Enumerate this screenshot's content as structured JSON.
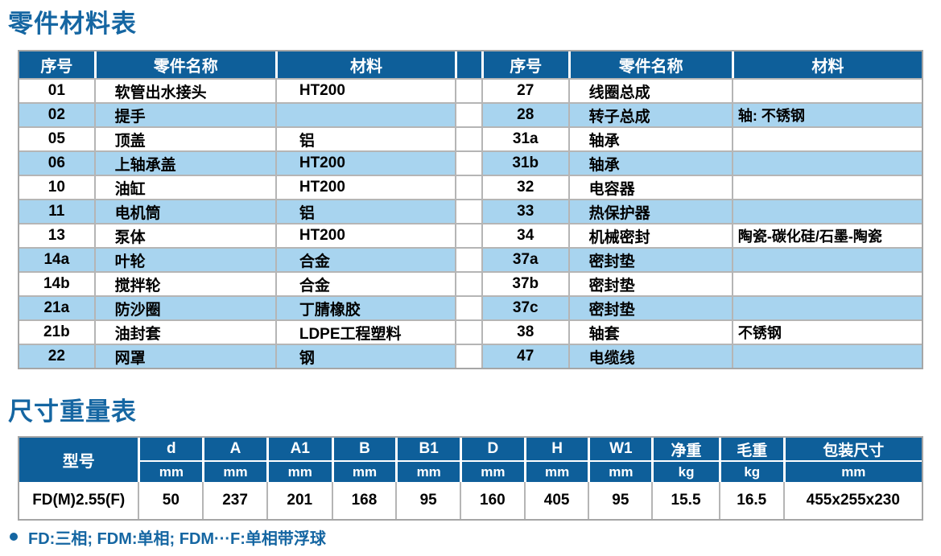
{
  "colors": {
    "header_bg": "#0e5f9a",
    "row_alt": "#a8d4ef",
    "title": "#1566a2",
    "grid_line": "#b5b5b5",
    "outer_border": "#a6a6a6"
  },
  "parts_table": {
    "title": "零件材料表",
    "headers": {
      "no": "序号",
      "name": "零件名称",
      "material": "材料"
    },
    "left_rows": [
      {
        "no": "01",
        "name": "软管出水接头",
        "material": "HT200"
      },
      {
        "no": "02",
        "name": "提手",
        "material": ""
      },
      {
        "no": "05",
        "name": "顶盖",
        "material": "铝"
      },
      {
        "no": "06",
        "name": "上轴承盖",
        "material": "HT200"
      },
      {
        "no": "10",
        "name": "油缸",
        "material": "HT200"
      },
      {
        "no": "11",
        "name": "电机筒",
        "material": "铝"
      },
      {
        "no": "13",
        "name": "泵体",
        "material": "HT200"
      },
      {
        "no": "14a",
        "name": "叶轮",
        "material": "合金"
      },
      {
        "no": "14b",
        "name": "搅拌轮",
        "material": "合金"
      },
      {
        "no": "21a",
        "name": "防沙圈",
        "material": "丁腈橡胶"
      },
      {
        "no": "21b",
        "name": "油封套",
        "material": "LDPE工程塑料"
      },
      {
        "no": "22",
        "name": "网罩",
        "material": "钢"
      }
    ],
    "right_rows": [
      {
        "no": "27",
        "name": "线圈总成",
        "material": ""
      },
      {
        "no": "28",
        "name": "转子总成",
        "material": "轴: 不锈钢"
      },
      {
        "no": "31a",
        "name": "轴承",
        "material": ""
      },
      {
        "no": "31b",
        "name": "轴承",
        "material": ""
      },
      {
        "no": "32",
        "name": "电容器",
        "material": ""
      },
      {
        "no": "33",
        "name": "热保护器",
        "material": ""
      },
      {
        "no": "34",
        "name": "机械密封",
        "material": "陶瓷-碳化硅/石墨-陶瓷"
      },
      {
        "no": "37a",
        "name": "密封垫",
        "material": ""
      },
      {
        "no": "37b",
        "name": "密封垫",
        "material": ""
      },
      {
        "no": "37c",
        "name": "密封垫",
        "material": ""
      },
      {
        "no": "38",
        "name": "轴套",
        "material": "不锈钢"
      },
      {
        "no": "47",
        "name": "电缆线",
        "material": ""
      }
    ]
  },
  "dimension_table": {
    "title": "尺寸重量表",
    "model_header": "型号",
    "columns": [
      {
        "label": "d",
        "unit": "mm"
      },
      {
        "label": "A",
        "unit": "mm"
      },
      {
        "label": "A1",
        "unit": "mm"
      },
      {
        "label": "B",
        "unit": "mm"
      },
      {
        "label": "B1",
        "unit": "mm"
      },
      {
        "label": "D",
        "unit": "mm"
      },
      {
        "label": "H",
        "unit": "mm"
      },
      {
        "label": "W1",
        "unit": "mm"
      },
      {
        "label": "净重",
        "unit": "kg"
      },
      {
        "label": "毛重",
        "unit": "kg"
      },
      {
        "label": "包装尺寸",
        "unit": "mm"
      }
    ],
    "rows": [
      {
        "model": "FD(M)2.55(F)",
        "values": [
          "50",
          "237",
          "201",
          "168",
          "95",
          "160",
          "405",
          "95",
          "15.5",
          "16.5",
          "455x255x230"
        ]
      }
    ]
  },
  "footnote": "FD:三相; FDM:单相; FDM···F:单相带浮球"
}
